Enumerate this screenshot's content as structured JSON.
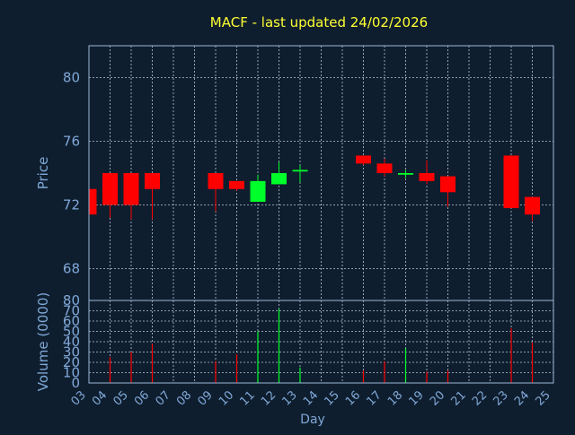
{
  "chart_data": [
    {
      "type": "candlestick",
      "title": "MACF - last updated 24/02/2026",
      "ylabel": "Price",
      "ylim": [
        66,
        82
      ],
      "yticks": [
        "68",
        "72",
        "76",
        "80"
      ],
      "grid": true,
      "candles": [
        {
          "day": "03",
          "open": 73.0,
          "high": 73.0,
          "low": 71.4,
          "close": 71.4,
          "dir": "down"
        },
        {
          "day": "04",
          "open": 74.0,
          "high": 74.0,
          "low": 71.2,
          "close": 72.0,
          "dir": "down"
        },
        {
          "day": "05",
          "open": 74.0,
          "high": 74.0,
          "low": 71.1,
          "close": 72.0,
          "dir": "down"
        },
        {
          "day": "06",
          "open": 74.0,
          "high": 74.0,
          "low": 71.1,
          "close": 73.0,
          "dir": "down"
        },
        {
          "day": "09",
          "open": 74.0,
          "high": 74.0,
          "low": 71.6,
          "close": 73.0,
          "dir": "down"
        },
        {
          "day": "10",
          "open": 73.5,
          "high": 73.5,
          "low": 72.9,
          "close": 73.0,
          "dir": "down"
        },
        {
          "day": "11",
          "open": 72.2,
          "high": 73.9,
          "low": 72.2,
          "close": 73.5,
          "dir": "up"
        },
        {
          "day": "12",
          "open": 73.3,
          "high": 74.7,
          "low": 73.3,
          "close": 74.0,
          "dir": "up"
        },
        {
          "day": "13",
          "open": 74.1,
          "high": 74.5,
          "low": 73.4,
          "close": 74.2,
          "dir": "up"
        },
        {
          "day": "16",
          "open": 75.1,
          "high": 75.1,
          "low": 74.5,
          "close": 74.6,
          "dir": "down"
        },
        {
          "day": "17",
          "open": 74.6,
          "high": 74.9,
          "low": 73.8,
          "close": 74.0,
          "dir": "down"
        },
        {
          "day": "18",
          "open": 73.9,
          "high": 74.2,
          "low": 73.7,
          "close": 74.0,
          "dir": "up"
        },
        {
          "day": "19",
          "open": 74.0,
          "high": 74.8,
          "low": 73.3,
          "close": 73.5,
          "dir": "down"
        },
        {
          "day": "20",
          "open": 73.8,
          "high": 73.8,
          "low": 71.9,
          "close": 72.8,
          "dir": "down"
        },
        {
          "day": "23",
          "open": 75.1,
          "high": 75.1,
          "low": 71.8,
          "close": 71.8,
          "dir": "down"
        },
        {
          "day": "24",
          "open": 72.5,
          "high": 72.5,
          "low": 71.0,
          "close": 71.4,
          "dir": "down"
        }
      ]
    },
    {
      "type": "bar",
      "ylabel": "Volume (0000)",
      "xlabel": "Day",
      "ylim": [
        0,
        80
      ],
      "yticks": [
        "0",
        "10",
        "20",
        "30",
        "40",
        "50",
        "60",
        "70",
        "80"
      ],
      "categories": [
        "03",
        "04",
        "05",
        "06",
        "07",
        "08",
        "09",
        "10",
        "11",
        "12",
        "13",
        "14",
        "15",
        "16",
        "17",
        "18",
        "19",
        "20",
        "21",
        "22",
        "23",
        "24",
        "25"
      ],
      "values": [
        0,
        25,
        30,
        38,
        0,
        0,
        21,
        28,
        50,
        72,
        15,
        0,
        0,
        12,
        21,
        34,
        11,
        12,
        0,
        0,
        53,
        39,
        0
      ],
      "dirs": [
        "down",
        "down",
        "down",
        "down",
        "down",
        "down",
        "down",
        "down",
        "up",
        "up",
        "up",
        "down",
        "down",
        "down",
        "down",
        "up",
        "down",
        "down",
        "down",
        "down",
        "down",
        "down",
        "down"
      ]
    }
  ],
  "colors": {
    "background": "#0f1e2e",
    "title": "#ffff33",
    "axis_text": "#7fa8d8",
    "frame": "#9cb8d8",
    "grid": "#b8c6d8",
    "up": "#00ff2a",
    "down": "#ff0000"
  }
}
